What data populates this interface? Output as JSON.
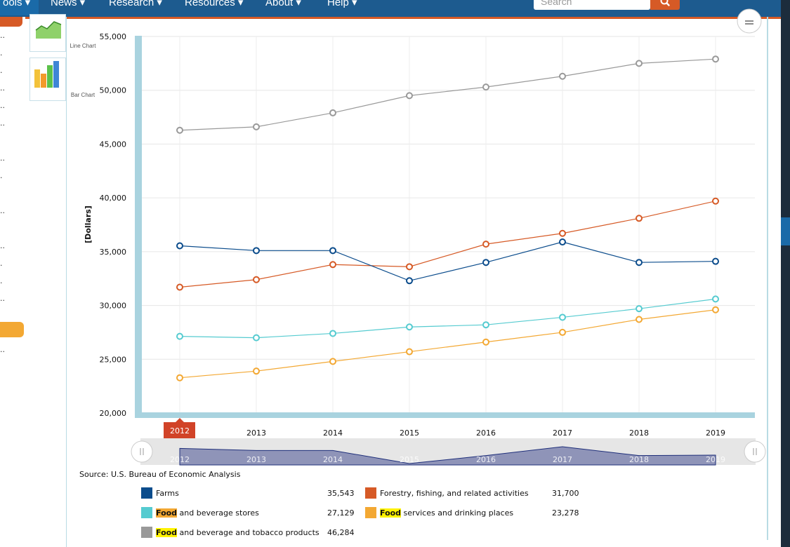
{
  "nav": {
    "items": [
      {
        "label": "ools ▾"
      },
      {
        "label": "News ▾"
      },
      {
        "label": "Research ▾"
      },
      {
        "label": "Resources ▾"
      },
      {
        "label": "About ▾"
      },
      {
        "label": "Help ▾"
      }
    ],
    "search_placeholder": "Search"
  },
  "thumbnails": {
    "line_label": "Line Chart",
    "bar_label": "Bar Chart"
  },
  "source": "Source: U.S. Bureau of Economic Analysis",
  "selected_year": "2012",
  "colors": {
    "farms": "#0b4c8c",
    "forestry": "#d65a26",
    "food_stores": "#55cbd0",
    "food_services": "#f3a833",
    "food_products": "#999999"
  },
  "chart_data": {
    "type": "line",
    "title": "",
    "xlabel": "",
    "ylabel": "[Dollars]",
    "ylim": [
      20000,
      55000
    ],
    "yticks": [
      "20,000",
      "25,000",
      "30,000",
      "35,000",
      "40,000",
      "45,000",
      "50,000",
      "55,000"
    ],
    "x": [
      "2012",
      "2013",
      "2014",
      "2015",
      "2016",
      "2017",
      "2018",
      "2019"
    ],
    "grid": true,
    "series": [
      {
        "key": "food_products",
        "name": "Food and beverage and tobacco products",
        "values": [
          46284,
          46600,
          47900,
          49500,
          50300,
          51300,
          52500,
          52900
        ]
      },
      {
        "key": "forestry",
        "name": "Forestry, fishing, and related activities",
        "values": [
          31700,
          32400,
          33800,
          33600,
          35700,
          36700,
          38100,
          39700
        ]
      },
      {
        "key": "farms",
        "name": "Farms",
        "values": [
          35543,
          35100,
          35100,
          32300,
          34000,
          35900,
          34000,
          34100
        ]
      },
      {
        "key": "food_stores",
        "name": "Food and beverage stores",
        "values": [
          27129,
          27000,
          27400,
          28000,
          28200,
          28900,
          29700,
          30600
        ]
      },
      {
        "key": "food_services",
        "name": "Food services and drinking places",
        "values": [
          23278,
          23900,
          24800,
          25700,
          26600,
          27500,
          28700,
          29600
        ]
      }
    ]
  },
  "legend": {
    "farms": {
      "label": "Farms",
      "value": "35,543"
    },
    "forestry": {
      "label": "Forestry, fishing, and related activities",
      "value": "31,700"
    },
    "food_stores": {
      "highlight": "Food",
      "rest": " and beverage stores",
      "value": "27,129"
    },
    "food_services": {
      "highlight": "Food",
      "rest": " services and drinking places",
      "value": "23,278"
    },
    "food_products": {
      "highlight": "Food",
      "rest": " and beverage and tobacco products",
      "value": "46,284"
    }
  }
}
